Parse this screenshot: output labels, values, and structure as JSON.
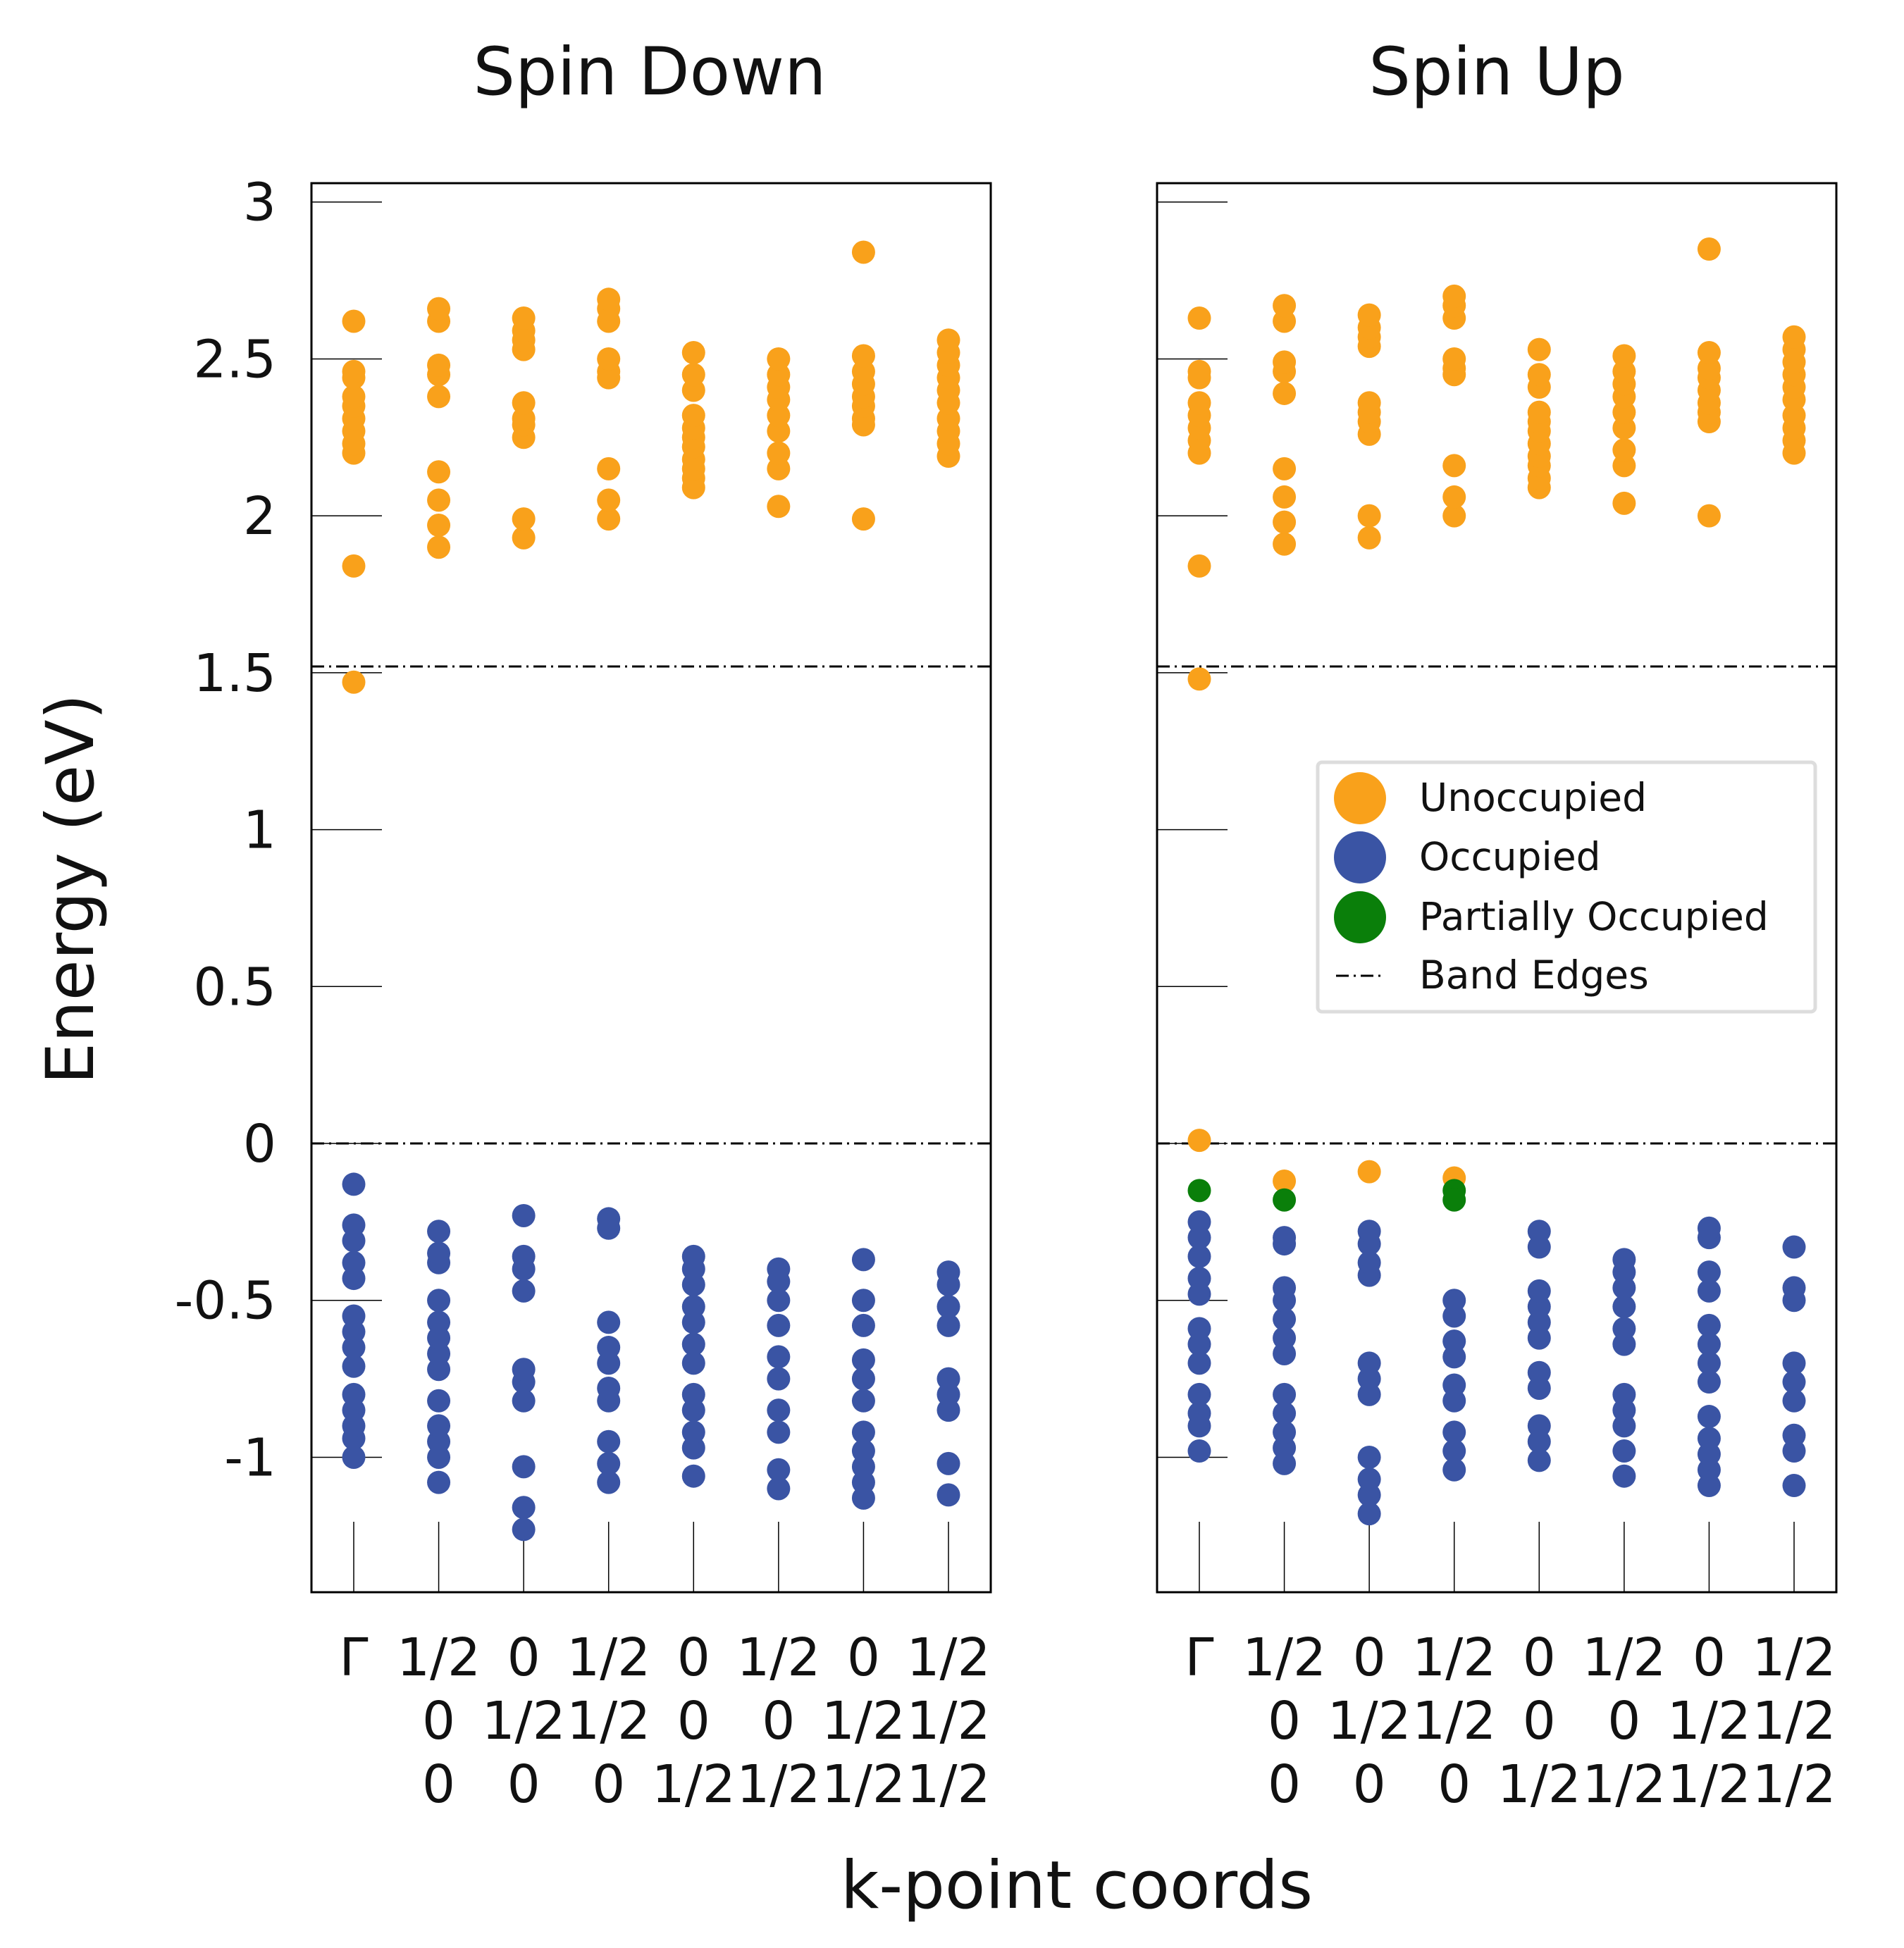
{
  "chart_data": {
    "type": "scatter",
    "ylabel": "Energy (eV)",
    "xlabel": "k-point coords",
    "ylim": [
      -1.43,
      3.06
    ],
    "yticks": [
      "-1",
      "-0.5",
      "0",
      "0.5",
      "1",
      "1.5",
      "2",
      "2.5",
      "3"
    ],
    "band_edges": [
      0.0,
      1.52
    ],
    "kpoints": [
      [
        "Γ",
        "",
        ""
      ],
      [
        "1/2",
        "0",
        "0"
      ],
      [
        "0",
        "1/2",
        "0"
      ],
      [
        "1/2",
        "1/2",
        "0"
      ],
      [
        "0",
        "0",
        "1/2"
      ],
      [
        "1/2",
        "0",
        "1/2"
      ],
      [
        "0",
        "1/2",
        "1/2"
      ],
      [
        "1/2",
        "1/2",
        "1/2"
      ]
    ],
    "colors": {
      "unoccupied": "#f9a11b",
      "occupied": "#3a54a4",
      "partial": "#0a7f0a",
      "band_edge": "#000000"
    },
    "legend": {
      "placement": "center-right",
      "entries": [
        "Unoccupied",
        "Occupied",
        "Partially Occupied",
        "Band Edges"
      ]
    },
    "panels": [
      {
        "title": "Spin Down",
        "unoccupied": [
          [
            1.47,
            1.84,
            2.2,
            2.23,
            2.27,
            2.31,
            2.35,
            2.38,
            2.44,
            2.46,
            2.62
          ],
          [
            1.9,
            1.97,
            2.05,
            2.14,
            2.38,
            2.45,
            2.48,
            2.62,
            2.66
          ],
          [
            1.93,
            1.99,
            2.25,
            2.29,
            2.31,
            2.36,
            2.53,
            2.56,
            2.59,
            2.63
          ],
          [
            1.99,
            2.05,
            2.15,
            2.44,
            2.46,
            2.5,
            2.62,
            2.66,
            2.69
          ],
          [
            2.09,
            2.12,
            2.15,
            2.18,
            2.22,
            2.25,
            2.28,
            2.32,
            2.4,
            2.45,
            2.52
          ],
          [
            2.03,
            2.15,
            2.2,
            2.27,
            2.32,
            2.37,
            2.41,
            2.45,
            2.5
          ],
          [
            1.99,
            2.29,
            2.31,
            2.35,
            2.38,
            2.42,
            2.46,
            2.51,
            2.84
          ],
          [
            2.19,
            2.23,
            2.27,
            2.31,
            2.36,
            2.4,
            2.44,
            2.48,
            2.52,
            2.56
          ]
        ],
        "occupied": [
          [
            -1.0,
            -0.94,
            -0.9,
            -0.85,
            -0.8,
            -0.71,
            -0.65,
            -0.6,
            -0.55,
            -0.43,
            -0.38,
            -0.31,
            -0.26,
            -0.13
          ],
          [
            -1.08,
            -1.0,
            -0.95,
            -0.9,
            -0.82,
            -0.72,
            -0.67,
            -0.62,
            -0.57,
            -0.5,
            -0.38,
            -0.35,
            -0.28
          ],
          [
            -1.23,
            -1.16,
            -1.03,
            -0.82,
            -0.76,
            -0.72,
            -0.47,
            -0.4,
            -0.36,
            -0.23
          ],
          [
            -1.08,
            -1.02,
            -0.95,
            -0.82,
            -0.78,
            -0.7,
            -0.65,
            -0.57,
            -0.27,
            -0.24
          ],
          [
            -1.06,
            -0.97,
            -0.92,
            -0.85,
            -0.8,
            -0.7,
            -0.64,
            -0.57,
            -0.52,
            -0.45,
            -0.4,
            -0.36
          ],
          [
            -1.1,
            -1.04,
            -0.92,
            -0.85,
            -0.75,
            -0.68,
            -0.58,
            -0.5,
            -0.44,
            -0.4
          ],
          [
            -1.13,
            -1.08,
            -1.03,
            -0.98,
            -0.92,
            -0.82,
            -0.75,
            -0.69,
            -0.58,
            -0.5,
            -0.37
          ],
          [
            -1.12,
            -1.02,
            -0.85,
            -0.8,
            -0.75,
            -0.58,
            -0.52,
            -0.45,
            -0.41
          ]
        ],
        "partial": [
          [],
          [],
          [],
          [],
          [],
          [],
          [],
          []
        ]
      },
      {
        "title": "Spin Up",
        "unoccupied": [
          [
            0.01,
            1.48,
            1.84,
            2.2,
            2.24,
            2.28,
            2.32,
            2.36,
            2.44,
            2.46,
            2.63
          ],
          [
            -0.12,
            1.91,
            1.98,
            2.06,
            2.15,
            2.39,
            2.46,
            2.49,
            2.62,
            2.67
          ],
          [
            -0.09,
            1.93,
            2.0,
            2.26,
            2.3,
            2.33,
            2.36,
            2.54,
            2.57,
            2.6,
            2.64
          ],
          [
            -0.11,
            2.0,
            2.06,
            2.16,
            2.45,
            2.47,
            2.5,
            2.63,
            2.67,
            2.7
          ],
          [
            2.09,
            2.12,
            2.16,
            2.19,
            2.23,
            2.27,
            2.3,
            2.33,
            2.41,
            2.45,
            2.53
          ],
          [
            2.04,
            2.16,
            2.21,
            2.28,
            2.33,
            2.38,
            2.42,
            2.46,
            2.51
          ],
          [
            2.0,
            2.3,
            2.33,
            2.36,
            2.4,
            2.44,
            2.47,
            2.52,
            2.85
          ],
          [
            2.2,
            2.24,
            2.28,
            2.32,
            2.37,
            2.41,
            2.45,
            2.49,
            2.53,
            2.57
          ]
        ],
        "occupied": [
          [
            -0.98,
            -0.9,
            -0.86,
            -0.8,
            -0.7,
            -0.64,
            -0.59,
            -0.48,
            -0.43,
            -0.36,
            -0.3,
            -0.25
          ],
          [
            -1.02,
            -0.97,
            -0.92,
            -0.86,
            -0.8,
            -0.67,
            -0.62,
            -0.56,
            -0.5,
            -0.46,
            -0.32,
            -0.3
          ],
          [
            -1.18,
            -1.12,
            -1.07,
            -1.0,
            -0.8,
            -0.75,
            -0.7,
            -0.42,
            -0.38,
            -0.32,
            -0.28
          ],
          [
            -1.04,
            -0.98,
            -0.92,
            -0.82,
            -0.77,
            -0.68,
            -0.63,
            -0.55,
            -0.5
          ],
          [
            -1.01,
            -0.95,
            -0.9,
            -0.78,
            -0.73,
            -0.62,
            -0.57,
            -0.52,
            -0.47,
            -0.33,
            -0.28
          ],
          [
            -1.06,
            -0.98,
            -0.9,
            -0.85,
            -0.8,
            -0.64,
            -0.59,
            -0.52,
            -0.46,
            -0.41,
            -0.37
          ],
          [
            -1.09,
            -1.04,
            -0.99,
            -0.94,
            -0.87,
            -0.76,
            -0.7,
            -0.64,
            -0.58,
            -0.47,
            -0.41,
            -0.3,
            -0.27
          ],
          [
            -1.09,
            -0.98,
            -0.93,
            -0.82,
            -0.76,
            -0.7,
            -0.5,
            -0.46,
            -0.33
          ]
        ],
        "partial": [
          [
            -0.15
          ],
          [
            -0.18
          ],
          [],
          [
            -0.15,
            -0.18
          ],
          [],
          [],
          [],
          []
        ]
      }
    ]
  }
}
